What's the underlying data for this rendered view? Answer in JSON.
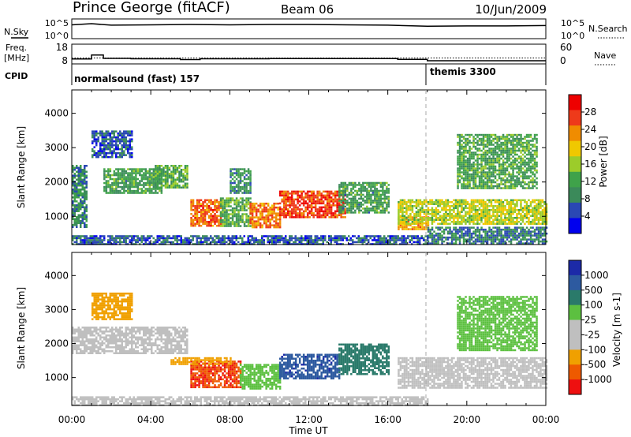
{
  "header": {
    "station": "Prince George (fitACF)",
    "beam": "Beam 06",
    "date": "10/Jun/2009"
  },
  "strip_labels": {
    "nsky": "N.Sky",
    "nsky_ticks": [
      "10^5",
      "10^0"
    ],
    "nsearch": "N.Search",
    "nsearch_ticks": [
      "10^5",
      "10^0"
    ],
    "freq_line1": "Freq.",
    "freq_line2": "[MHz]",
    "freq_ticks": [
      "18",
      "8"
    ],
    "nave": "Nave",
    "nave_ticks": [
      "60",
      "0"
    ],
    "cpid": "CPID"
  },
  "colors": {
    "power_scale": [
      "#0000ee",
      "#2a48b4",
      "#3b8a5a",
      "#3fa24a",
      "#9ccc2a",
      "#f0c800",
      "#f08c00",
      "#ee3a1a",
      "#ee0000"
    ],
    "velocity_scale": [
      "#1c2aa8",
      "#2d5aa0",
      "#2a7a6a",
      "#5cc040",
      "#bfbfbf",
      "#bfbfbf",
      "#f0a000",
      "#ee5a00",
      "#ee1010"
    ]
  },
  "chart_data": [
    {
      "type": "line",
      "panel": "noise-and-search",
      "x_label": "",
      "x_range": [
        "00:00",
        "24:00"
      ],
      "series": [
        {
          "name": "N.Sky",
          "x_hours": [
            0,
            1,
            2,
            4,
            6,
            8,
            10,
            12,
            14,
            16,
            18,
            20,
            22,
            24
          ],
          "log10_values": [
            3.6,
            3.9,
            3.5,
            3.6,
            3.7,
            3.6,
            3.7,
            3.7,
            3.6,
            3.5,
            3.2,
            3.3,
            3.3,
            3.4
          ]
        }
      ]
    },
    {
      "type": "line",
      "panel": "frequency-and-nave",
      "series": [
        {
          "name": "Freq. [MHz]",
          "x_hours": [
            0,
            0.6,
            1.0,
            1.6,
            3.0,
            5.5,
            6.5,
            10,
            13,
            16.5,
            18,
            24
          ],
          "values": [
            10.5,
            10.5,
            12.5,
            10.8,
            10.6,
            10.2,
            10.6,
            10.7,
            10.7,
            10.3,
            9.6,
            9.6
          ]
        },
        {
          "name": "Nave",
          "x_hours": [
            0,
            18,
            24
          ],
          "values": [
            18,
            18,
            18
          ]
        }
      ]
    },
    {
      "type": "table",
      "panel": "cpid",
      "segments": [
        {
          "label": "normalsound (fast) 157",
          "start": "00:00",
          "end": "17:55"
        },
        {
          "label": "themis 3300",
          "start": "17:55",
          "end": "24:00"
        }
      ]
    },
    {
      "type": "heatmap",
      "panel": "power",
      "xlabel": "",
      "ylabel": "Slant Range [km]",
      "colorbar_label": "Power [dB]",
      "x_ticks": [
        "00:00",
        "04:00",
        "08:00",
        "12:00",
        "16:00",
        "20:00",
        "00:00"
      ],
      "y_ticks": [
        "1000",
        "2000",
        "3000",
        "4000"
      ],
      "ylim": [
        180,
        4680
      ],
      "colorbar_ticks": [
        "4",
        "8",
        "12",
        "16",
        "20",
        "24",
        "28"
      ],
      "zlim": [
        0,
        32
      ],
      "regions": [
        {
          "t0": 0,
          "t1": 18,
          "r0": 190,
          "r1": 450,
          "v": 6
        },
        {
          "t0": 0,
          "t1": 0.7,
          "r0": 700,
          "r1": 2500,
          "v": 9
        },
        {
          "t0": 1.6,
          "t1": 4.5,
          "r0": 1700,
          "r1": 2400,
          "v": 11
        },
        {
          "t0": 4.2,
          "t1": 5.8,
          "r0": 1850,
          "r1": 2500,
          "v": 13
        },
        {
          "t0": 6.0,
          "t1": 7.5,
          "r0": 700,
          "r1": 1500,
          "v": 25
        },
        {
          "t0": 7.5,
          "t1": 9.0,
          "r0": 700,
          "r1": 1550,
          "v": 13
        },
        {
          "t0": 9.0,
          "t1": 10.5,
          "r0": 700,
          "r1": 1400,
          "v": 24
        },
        {
          "t0": 10.5,
          "t1": 13.8,
          "r0": 1000,
          "r1": 1750,
          "v": 27
        },
        {
          "t0": 13.5,
          "t1": 16.0,
          "r0": 1100,
          "r1": 2000,
          "v": 11
        },
        {
          "t0": 8.0,
          "t1": 9.0,
          "r0": 1700,
          "r1": 2400,
          "v": 10
        },
        {
          "t0": 16.5,
          "t1": 18.0,
          "r0": 600,
          "r1": 1000,
          "v": 22
        },
        {
          "t0": 16.5,
          "t1": 24,
          "r0": 800,
          "r1": 1500,
          "v": 17
        },
        {
          "t0": 18.0,
          "t1": 24,
          "r0": 190,
          "r1": 700,
          "v": 8
        },
        {
          "t0": 1.0,
          "t1": 3.0,
          "r0": 2700,
          "r1": 3500,
          "v": 6
        },
        {
          "t0": 19.5,
          "t1": 23.5,
          "r0": 1800,
          "r1": 3400,
          "v": 12
        }
      ]
    },
    {
      "type": "heatmap",
      "panel": "velocity",
      "xlabel": "Time UT",
      "ylabel": "Slant Range [km]",
      "colorbar_label": "Velocity [m s-1]",
      "x_ticks": [
        "00:00",
        "04:00",
        "08:00",
        "12:00",
        "16:00",
        "20:00",
        "00:00"
      ],
      "y_ticks": [
        "1000",
        "2000",
        "3000",
        "4000"
      ],
      "ylim": [
        180,
        4680
      ],
      "colorbar_ticks": [
        "1000",
        "500",
        "100",
        "25",
        "-25",
        "-100",
        "-500",
        "-1000"
      ],
      "regions": [
        {
          "t0": 0,
          "t1": 18,
          "r0": 190,
          "r1": 450,
          "v": 0
        },
        {
          "t0": 0,
          "t1": 5.8,
          "r0": 1700,
          "r1": 2500,
          "v": 0
        },
        {
          "t0": 6.0,
          "t1": 8.5,
          "r0": 700,
          "r1": 1500,
          "v": -700
        },
        {
          "t0": 8.5,
          "t1": 10.5,
          "r0": 700,
          "r1": 1400,
          "v": 50
        },
        {
          "t0": 10.5,
          "t1": 13.5,
          "r0": 1000,
          "r1": 1700,
          "v": 600
        },
        {
          "t0": 13.5,
          "t1": 16.0,
          "r0": 1100,
          "r1": 2000,
          "v": 150
        },
        {
          "t0": 16.5,
          "t1": 24,
          "r0": 700,
          "r1": 1600,
          "v": 0
        },
        {
          "t0": 5.0,
          "t1": 8.0,
          "r0": 1400,
          "r1": 1600,
          "v": -150
        },
        {
          "t0": 1.0,
          "t1": 3.0,
          "r0": 2700,
          "r1": 3500,
          "v": -150
        },
        {
          "t0": 19.5,
          "t1": 23.5,
          "r0": 1800,
          "r1": 3400,
          "v": 50
        }
      ]
    }
  ]
}
